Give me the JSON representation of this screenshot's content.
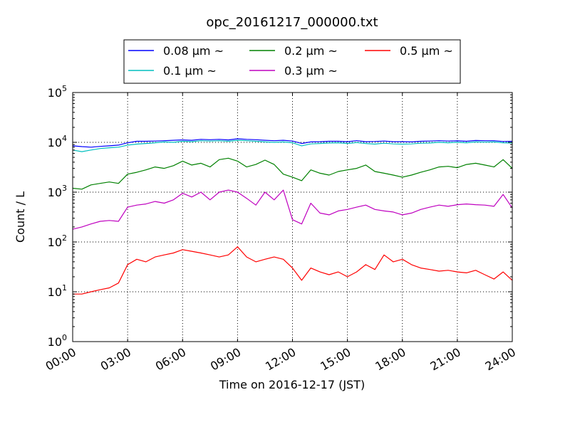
{
  "chart_data": {
    "type": "line",
    "title": "opc_20161217_000000.txt",
    "xlabel": "Time on 2016-12-17 (JST)",
    "ylabel": "Count / L",
    "x_unit": "hours",
    "xlim": [
      0,
      24
    ],
    "y_scale": "log",
    "ylim": [
      1,
      100000
    ],
    "grid": true,
    "legend_position": "above plot",
    "x_ticks": [
      0,
      3,
      6,
      9,
      12,
      15,
      18,
      21,
      24
    ],
    "x_tick_labels": [
      "00:00",
      "03:00",
      "06:00",
      "09:00",
      "12:00",
      "15:00",
      "18:00",
      "21:00",
      "24:00"
    ],
    "y_ticks": [
      1,
      10,
      100,
      1000,
      10000,
      100000
    ],
    "y_tick_labels": [
      {
        "base": "10",
        "exp": "0"
      },
      {
        "base": "10",
        "exp": "1"
      },
      {
        "base": "10",
        "exp": "2"
      },
      {
        "base": "10",
        "exp": "3"
      },
      {
        "base": "10",
        "exp": "4"
      },
      {
        "base": "10",
        "exp": "5"
      }
    ],
    "series": [
      {
        "name": "0.08 μm ~",
        "color": "#0000ff",
        "x": [
          0,
          0.5,
          1,
          1.5,
          2,
          2.5,
          3,
          3.5,
          4,
          4.5,
          5,
          5.5,
          6,
          6.5,
          7,
          7.5,
          8,
          8.5,
          9,
          9.5,
          10,
          10.5,
          11,
          11.5,
          12,
          12.5,
          13,
          13.5,
          14,
          14.5,
          15,
          15.5,
          16,
          16.5,
          17,
          17.5,
          18,
          18.5,
          19,
          19.5,
          20,
          20.5,
          21,
          21.5,
          22,
          22.5,
          23,
          23.5,
          24
        ],
        "y": [
          8500,
          8200,
          8000,
          8300,
          8500,
          8800,
          9800,
          10500,
          10500,
          10600,
          10800,
          11000,
          11200,
          11000,
          11500,
          11300,
          11500,
          11200,
          11800,
          11500,
          11300,
          11000,
          10800,
          11000,
          10600,
          9500,
          10200,
          10300,
          10500,
          10500,
          10300,
          10800,
          10300,
          10400,
          10600,
          10300,
          10300,
          10200,
          10500,
          10600,
          10800,
          10600,
          10700,
          10500,
          10900,
          10800,
          10800,
          10400,
          10500
        ]
      },
      {
        "name": "0.1 μm ~",
        "color": "#00bfbf",
        "x": [
          0,
          0.5,
          1,
          1.5,
          2,
          2.5,
          3,
          3.5,
          4,
          4.5,
          5,
          5.5,
          6,
          6.5,
          7,
          7.5,
          8,
          8.5,
          9,
          9.5,
          10,
          10.5,
          11,
          11.5,
          12,
          12.5,
          13,
          13.5,
          14,
          14.5,
          15,
          15.5,
          16,
          16.5,
          17,
          17.5,
          18,
          18.5,
          19,
          19.5,
          20,
          20.5,
          21,
          21.5,
          22,
          22.5,
          23,
          23.5,
          24
        ],
        "y": [
          7000,
          6500,
          7000,
          7500,
          7800,
          8000,
          8800,
          9200,
          9500,
          9800,
          10200,
          10000,
          10500,
          10300,
          10800,
          10600,
          10800,
          10500,
          11000,
          10800,
          10500,
          10200,
          10000,
          10200,
          9800,
          8500,
          9300,
          9500,
          9700,
          9800,
          9500,
          9900,
          9500,
          9200,
          9600,
          9300,
          9200,
          9300,
          9600,
          9700,
          10000,
          9800,
          10000,
          9800,
          10200,
          10100,
          10200,
          9800,
          9700
        ]
      },
      {
        "name": "0.2 μm ~",
        "color": "#008000",
        "x": [
          0,
          0.5,
          1,
          1.5,
          2,
          2.5,
          3,
          3.5,
          4,
          4.5,
          5,
          5.5,
          6,
          6.5,
          7,
          7.5,
          8,
          8.5,
          9,
          9.5,
          10,
          10.5,
          11,
          11.5,
          12,
          12.5,
          13,
          13.5,
          14,
          14.5,
          15,
          15.5,
          16,
          16.5,
          17,
          17.5,
          18,
          18.5,
          19,
          19.5,
          20,
          20.5,
          21,
          21.5,
          22,
          22.5,
          23,
          23.5,
          24
        ],
        "y": [
          1200,
          1150,
          1400,
          1500,
          1600,
          1500,
          2300,
          2500,
          2800,
          3200,
          3000,
          3400,
          4200,
          3500,
          3800,
          3200,
          4500,
          4800,
          4200,
          3200,
          3600,
          4400,
          3600,
          2300,
          2000,
          1700,
          2800,
          2400,
          2200,
          2600,
          2800,
          3000,
          3500,
          2600,
          2400,
          2200,
          2000,
          2200,
          2500,
          2800,
          3200,
          3300,
          3100,
          3600,
          3800,
          3500,
          3200,
          4500,
          3000
        ]
      },
      {
        "name": "0.3 μm ~",
        "color": "#bf00bf",
        "x": [
          0,
          0.5,
          1,
          1.5,
          2,
          2.5,
          3,
          3.5,
          4,
          4.5,
          5,
          5.5,
          6,
          6.5,
          7,
          7.5,
          8,
          8.5,
          9,
          9.5,
          10,
          10.5,
          11,
          11.5,
          12,
          12.5,
          13,
          13.5,
          14,
          14.5,
          15,
          15.5,
          16,
          16.5,
          17,
          17.5,
          18,
          18.5,
          19,
          19.5,
          20,
          20.5,
          21,
          21.5,
          22,
          22.5,
          23,
          23.5,
          24
        ],
        "y": [
          180,
          200,
          230,
          260,
          270,
          260,
          500,
          550,
          580,
          650,
          600,
          700,
          950,
          800,
          1000,
          700,
          1000,
          1100,
          1000,
          750,
          550,
          1000,
          700,
          1100,
          280,
          230,
          600,
          380,
          350,
          420,
          450,
          500,
          550,
          450,
          420,
          400,
          350,
          380,
          450,
          500,
          550,
          520,
          560,
          580,
          560,
          550,
          520,
          900,
          480
        ]
      },
      {
        "name": "0.5 μm ~",
        "color": "#ff0000",
        "x": [
          0,
          0.5,
          1,
          1.5,
          2,
          2.5,
          3,
          3.5,
          4,
          4.5,
          5,
          5.5,
          6,
          6.5,
          7,
          7.5,
          8,
          8.5,
          9,
          9.5,
          10,
          10.5,
          11,
          11.5,
          12,
          12.5,
          13,
          13.5,
          14,
          14.5,
          15,
          15.5,
          16,
          16.5,
          17,
          17.5,
          18,
          18.5,
          19,
          19.5,
          20,
          20.5,
          21,
          21.5,
          22,
          22.5,
          23,
          23.5,
          24
        ],
        "y": [
          9,
          9,
          10,
          11,
          12,
          15,
          35,
          45,
          40,
          50,
          55,
          60,
          70,
          65,
          60,
          55,
          50,
          55,
          80,
          50,
          40,
          45,
          50,
          45,
          30,
          17,
          30,
          25,
          22,
          25,
          20,
          25,
          35,
          28,
          55,
          40,
          45,
          35,
          30,
          28,
          26,
          27,
          25,
          24,
          27,
          22,
          18,
          25,
          17
        ]
      }
    ]
  }
}
